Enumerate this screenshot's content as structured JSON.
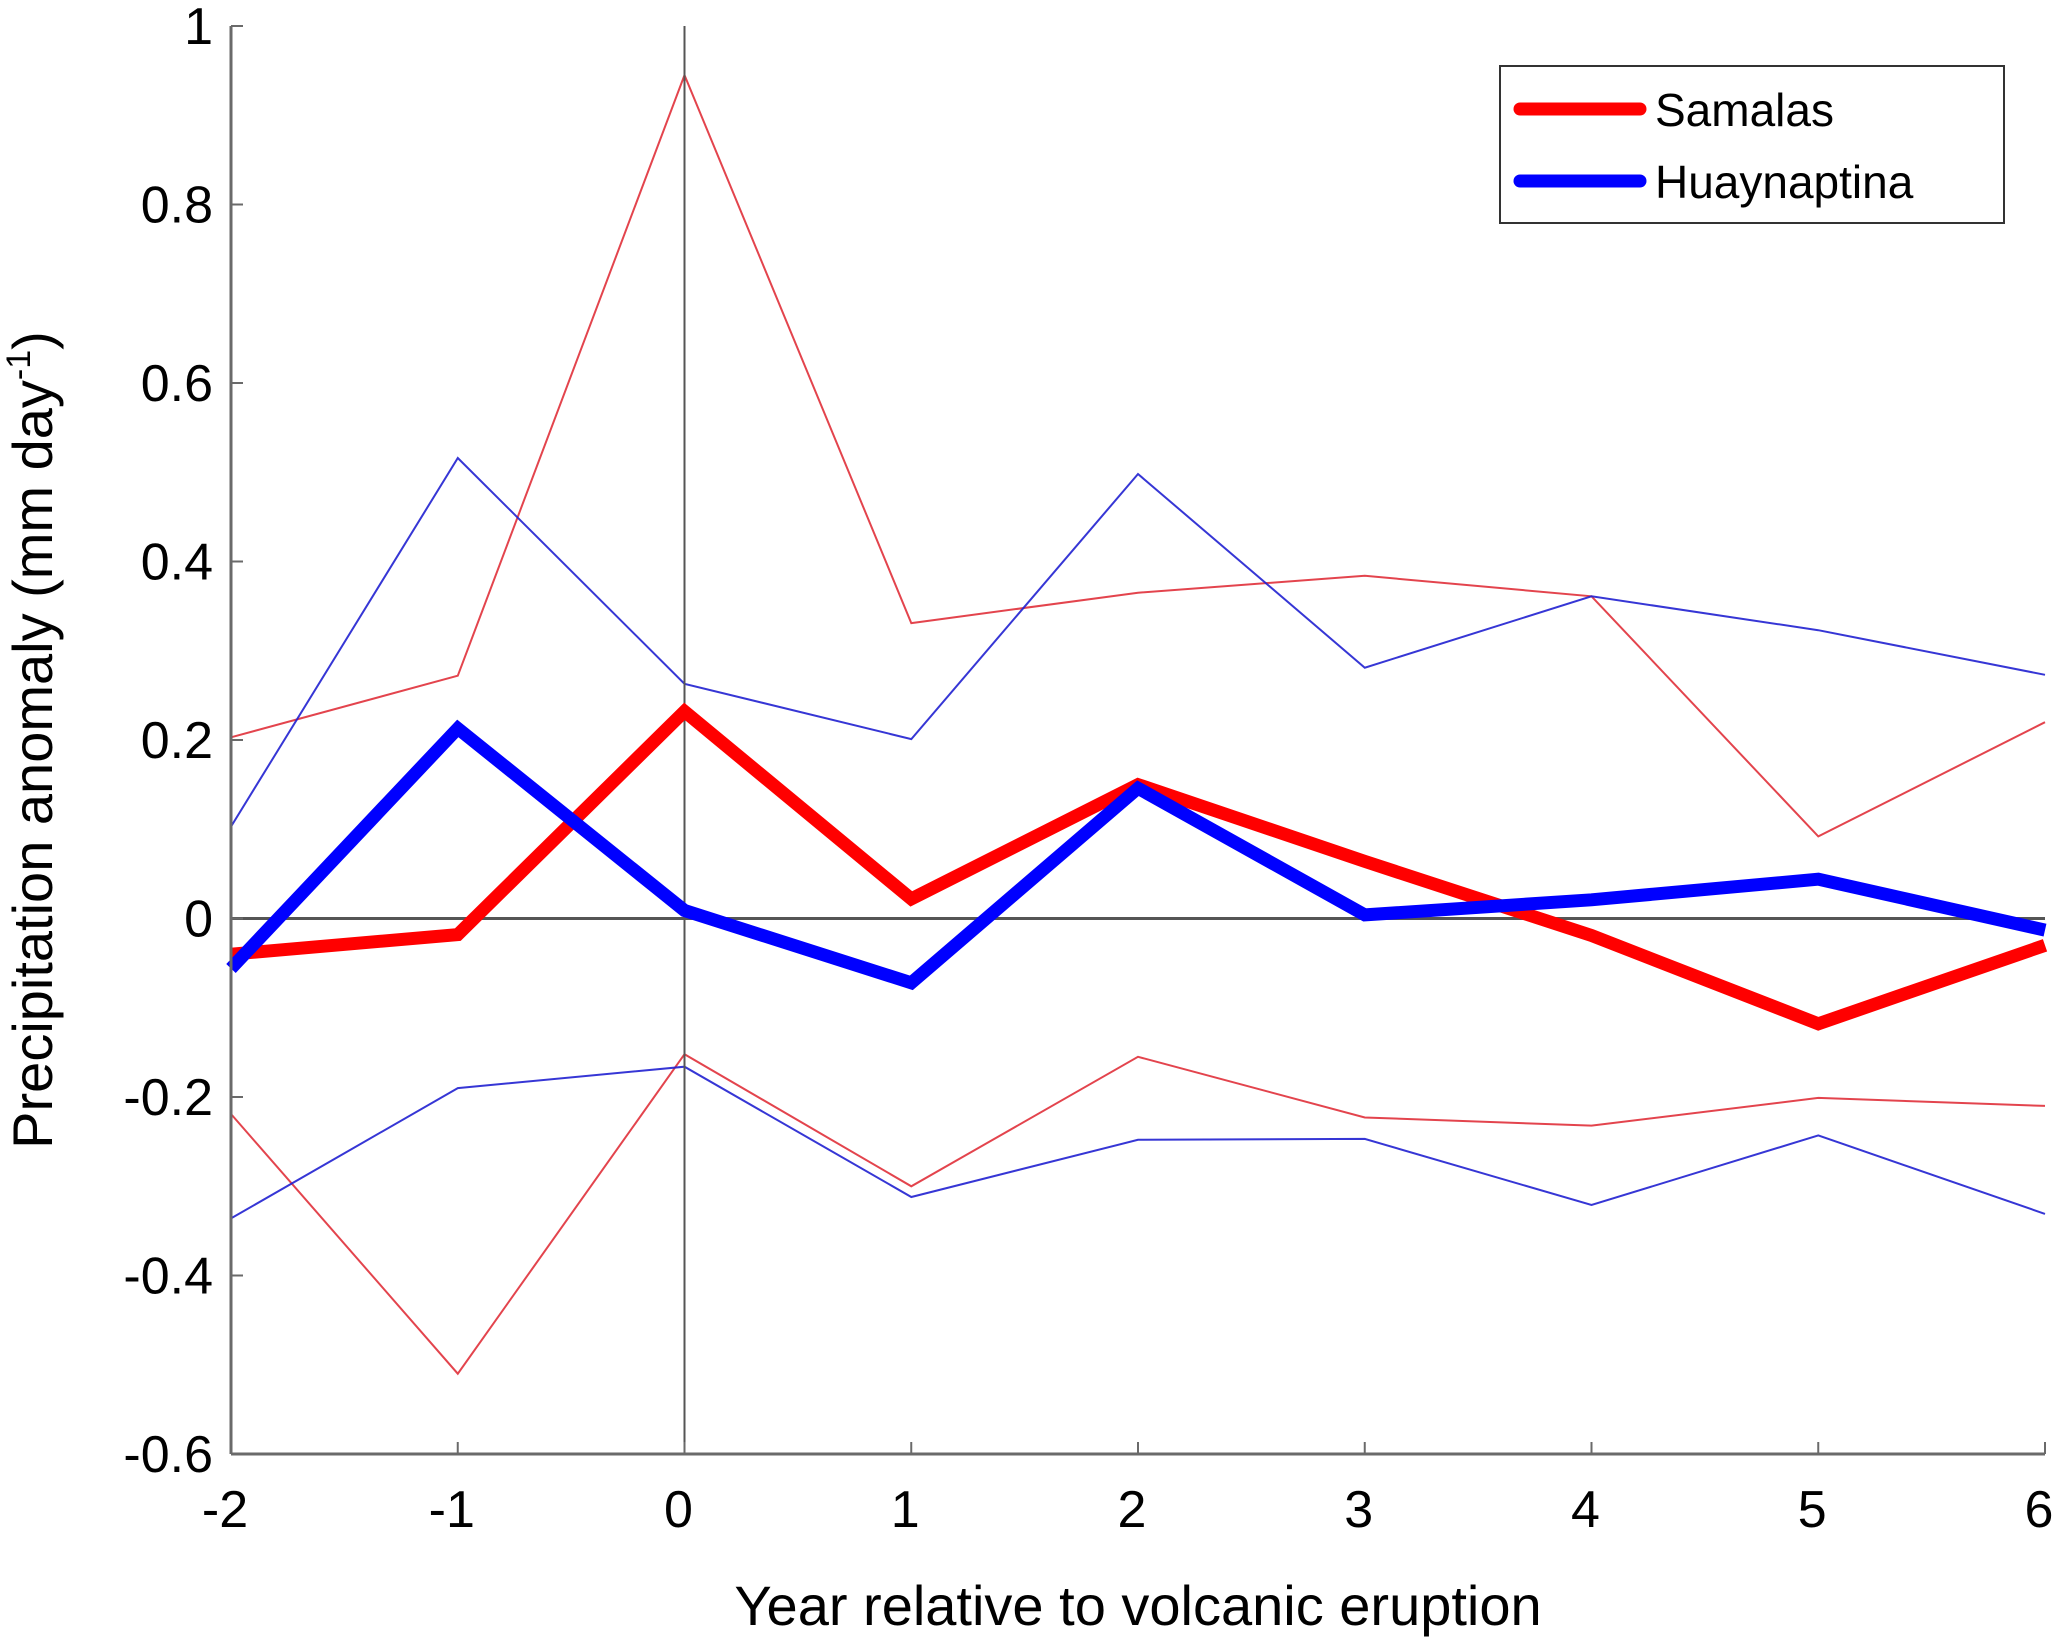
{
  "chart_data": {
    "type": "line",
    "title": "",
    "xlabel": "Year relative to volcanic eruption",
    "ylabel": "Precipitation anomaly (mm day",
    "ylabel_superscript": "-1",
    "ylabel_close": ")",
    "x": [
      -2,
      -1,
      0,
      1,
      2,
      3,
      4,
      5,
      6
    ],
    "xlim": [
      -2,
      6
    ],
    "ylim": [
      -0.6,
      1
    ],
    "xticks": [
      -2,
      -1,
      0,
      1,
      2,
      3,
      4,
      5,
      6
    ],
    "xtick_labels": [
      "-2",
      "-1",
      "0",
      "1",
      "2",
      "3",
      "4",
      "5",
      "6"
    ],
    "yticks": [
      -0.6,
      -0.4,
      -0.2,
      0,
      0.2,
      0.4,
      0.6,
      0.8,
      1
    ],
    "ytick_labels": [
      "-0.6",
      "-0.4",
      "-0.2",
      "0",
      "0.2",
      "0.4",
      "0.6",
      "0.8",
      "1"
    ],
    "grid": false,
    "reference_lines": {
      "horizontal_at_y": 0,
      "vertical_at_x": 0,
      "color": "#555555"
    },
    "legend": {
      "placement": "top-right",
      "entries": [
        {
          "label": "Samalas",
          "color": "#ff0000"
        },
        {
          "label": "Huaynaptina",
          "color": "#0000ff"
        }
      ]
    },
    "series": [
      {
        "name": "Samalas",
        "role": "mean",
        "color": "#ff0000",
        "values": [
          -0.04,
          -0.018,
          0.232,
          0.022,
          0.15,
          0.064,
          -0.019,
          -0.118,
          -0.03
        ]
      },
      {
        "name": "Huaynaptina",
        "role": "mean",
        "color": "#0000ff",
        "values": [
          -0.056,
          0.213,
          0.009,
          -0.072,
          0.146,
          0.004,
          0.021,
          0.044,
          -0.013
        ]
      },
      {
        "name": "Samalas upper bound",
        "role": "bound",
        "color": "#e0303a",
        "values": [
          0.203,
          0.272,
          0.945,
          0.331,
          0.365,
          0.384,
          0.361,
          0.092,
          0.22
        ]
      },
      {
        "name": "Samalas lower bound",
        "role": "bound",
        "color": "#e0303a",
        "values": [
          -0.219,
          -0.51,
          -0.152,
          -0.3,
          -0.155,
          -0.223,
          -0.232,
          -0.201,
          -0.21
        ]
      },
      {
        "name": "Huaynaptina upper bound",
        "role": "bound",
        "color": "#2020d0",
        "values": [
          0.103,
          0.516,
          0.263,
          0.201,
          0.498,
          0.281,
          0.361,
          0.323,
          0.273
        ]
      },
      {
        "name": "Huaynaptina lower bound",
        "role": "bound",
        "color": "#2020d0",
        "values": [
          -0.336,
          -0.19,
          -0.166,
          -0.312,
          -0.248,
          -0.247,
          -0.321,
          -0.243,
          -0.331
        ]
      }
    ]
  }
}
